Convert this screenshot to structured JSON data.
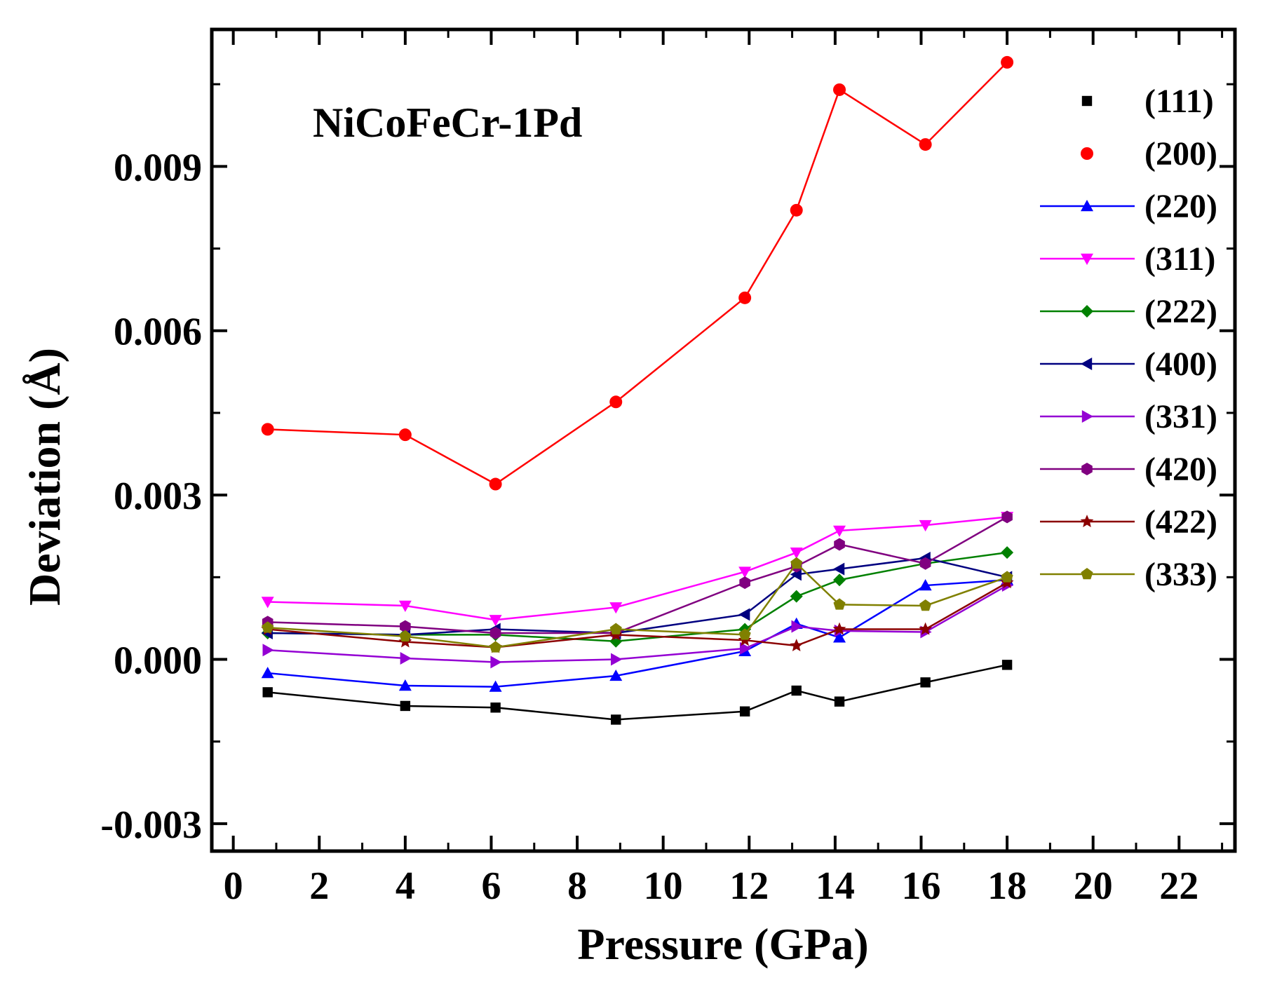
{
  "chart_data": {
    "type": "line",
    "title": "NiCoFeCr-1Pd",
    "xlabel": "Pressure (GPa)",
    "ylabel": "Deviation (Å)",
    "xlim": [
      -0.5,
      23.3
    ],
    "ylim": [
      -0.0035,
      0.0115
    ],
    "xticks": [
      0,
      2,
      4,
      6,
      8,
      10,
      12,
      14,
      16,
      18,
      20,
      22
    ],
    "xtick_labels": [
      "0",
      "2",
      "4",
      "6",
      "8",
      "10",
      "12",
      "14",
      "16",
      "18",
      "20",
      "22"
    ],
    "yticks": [
      -0.003,
      0.0,
      0.003,
      0.006,
      0.009
    ],
    "ytick_labels": [
      "-0.003",
      "0.000",
      "0.003",
      "0.006",
      "0.009"
    ],
    "grid": false,
    "legend_position": "right",
    "x": [
      0.8,
      4.0,
      6.1,
      8.9,
      11.9,
      13.1,
      14.1,
      16.1,
      18.0
    ],
    "series": [
      {
        "name": "(111)",
        "color": "#000000",
        "marker": "square",
        "values": [
          -0.0006,
          -0.00085,
          -0.00088,
          -0.0011,
          -0.00095,
          -0.00057,
          -0.00077,
          -0.00042,
          -0.0001
        ]
      },
      {
        "name": "(200)",
        "color": "#ff0000",
        "marker": "circle",
        "values": [
          0.0042,
          0.0041,
          0.0032,
          0.0047,
          0.0066,
          0.0082,
          0.0104,
          0.0094,
          0.0109
        ]
      },
      {
        "name": "(220)",
        "color": "#0000ff",
        "marker": "triangle-up",
        "values": [
          -0.00025,
          -0.00048,
          -0.0005,
          -0.0003,
          0.00015,
          0.00065,
          0.0004,
          0.00135,
          0.00145
        ]
      },
      {
        "name": "(311)",
        "color": "#ff00ff",
        "marker": "triangle-down",
        "values": [
          0.00105,
          0.00098,
          0.00072,
          0.00095,
          0.0016,
          0.00195,
          0.00235,
          0.00245,
          0.0026
        ]
      },
      {
        "name": "(222)",
        "color": "#008000",
        "marker": "diamond",
        "values": [
          0.00048,
          0.00045,
          0.00045,
          0.00033,
          0.00055,
          0.00115,
          0.00145,
          0.00175,
          0.00195
        ]
      },
      {
        "name": "(400)",
        "color": "#000080",
        "marker": "triangle-left",
        "values": [
          0.00048,
          0.00045,
          0.00055,
          0.00048,
          0.00082,
          0.00155,
          0.00165,
          0.00185,
          0.0015
        ]
      },
      {
        "name": "(331)",
        "color": "#9400d3",
        "marker": "triangle-right",
        "values": [
          0.00017,
          2e-05,
          -5e-05,
          0.0,
          0.0002,
          0.0006,
          0.00052,
          0.0005,
          0.00135
        ]
      },
      {
        "name": "(420)",
        "color": "#800080",
        "marker": "hexagon",
        "values": [
          0.00068,
          0.0006,
          0.00048,
          0.00048,
          0.0014,
          0.0017,
          0.0021,
          0.00175,
          0.0026
        ]
      },
      {
        "name": "(422)",
        "color": "#8b0000",
        "marker": "star",
        "values": [
          0.00055,
          0.00032,
          0.00022,
          0.00045,
          0.00035,
          0.00025,
          0.00055,
          0.00055,
          0.0014
        ]
      },
      {
        "name": "(333)",
        "color": "#808000",
        "marker": "pentagon",
        "values": [
          0.00058,
          0.00042,
          0.00022,
          0.00055,
          0.00045,
          0.00175,
          0.001,
          0.00098,
          0.0015
        ]
      }
    ]
  }
}
